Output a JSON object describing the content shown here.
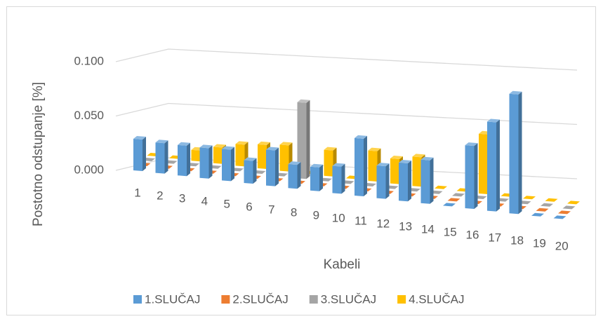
{
  "chart_data": {
    "type": "bar3d",
    "y_label": "Postotno odstupanje [%]",
    "x_label": "Kabeli",
    "categories": [
      "1",
      "2",
      "3",
      "4",
      "5",
      "6",
      "7",
      "8",
      "9",
      "10",
      "11",
      "12",
      "13",
      "14",
      "15",
      "16",
      "17",
      "18",
      "19",
      "20"
    ],
    "ylim": [
      0,
      0.1
    ],
    "yticks": [
      {
        "value": 0,
        "label": "0.000"
      },
      {
        "value": 0.05,
        "label": "0.050"
      },
      {
        "value": 0.1,
        "label": "0.100"
      }
    ],
    "grid": true,
    "legend": "bottom",
    "series": [
      {
        "name": "1.SLUČAJ",
        "color": "#5b9bd5",
        "values": [
          0.029,
          0.028,
          0.028,
          0.028,
          0.029,
          0.021,
          0.033,
          0.022,
          0.022,
          0.025,
          0.053,
          0.03,
          0.035,
          0.04,
          0,
          0.058,
          0.082,
          0.11,
          0,
          0
        ]
      },
      {
        "name": "2.SLUČAJ",
        "color": "#ed7d31",
        "values": [
          0,
          0,
          0,
          0,
          0,
          0,
          0,
          0,
          0,
          0,
          0,
          0,
          0,
          0,
          0,
          0,
          0,
          0,
          0,
          0
        ]
      },
      {
        "name": "3.SLUČAJ",
        "color": "#a5a5a5",
        "values": [
          0,
          0,
          0,
          0,
          0,
          0,
          0,
          0.07,
          0,
          0,
          0,
          0,
          0,
          0,
          0,
          0,
          0,
          0,
          0,
          0
        ]
      },
      {
        "name": "4.SLUČAJ",
        "color": "#ffc000",
        "values": [
          0,
          0,
          0.01,
          0.015,
          0.02,
          0.022,
          0.024,
          0,
          0.024,
          0,
          0.028,
          0.023,
          0.027,
          0,
          0,
          0.055,
          0,
          0,
          0,
          0
        ]
      }
    ]
  }
}
